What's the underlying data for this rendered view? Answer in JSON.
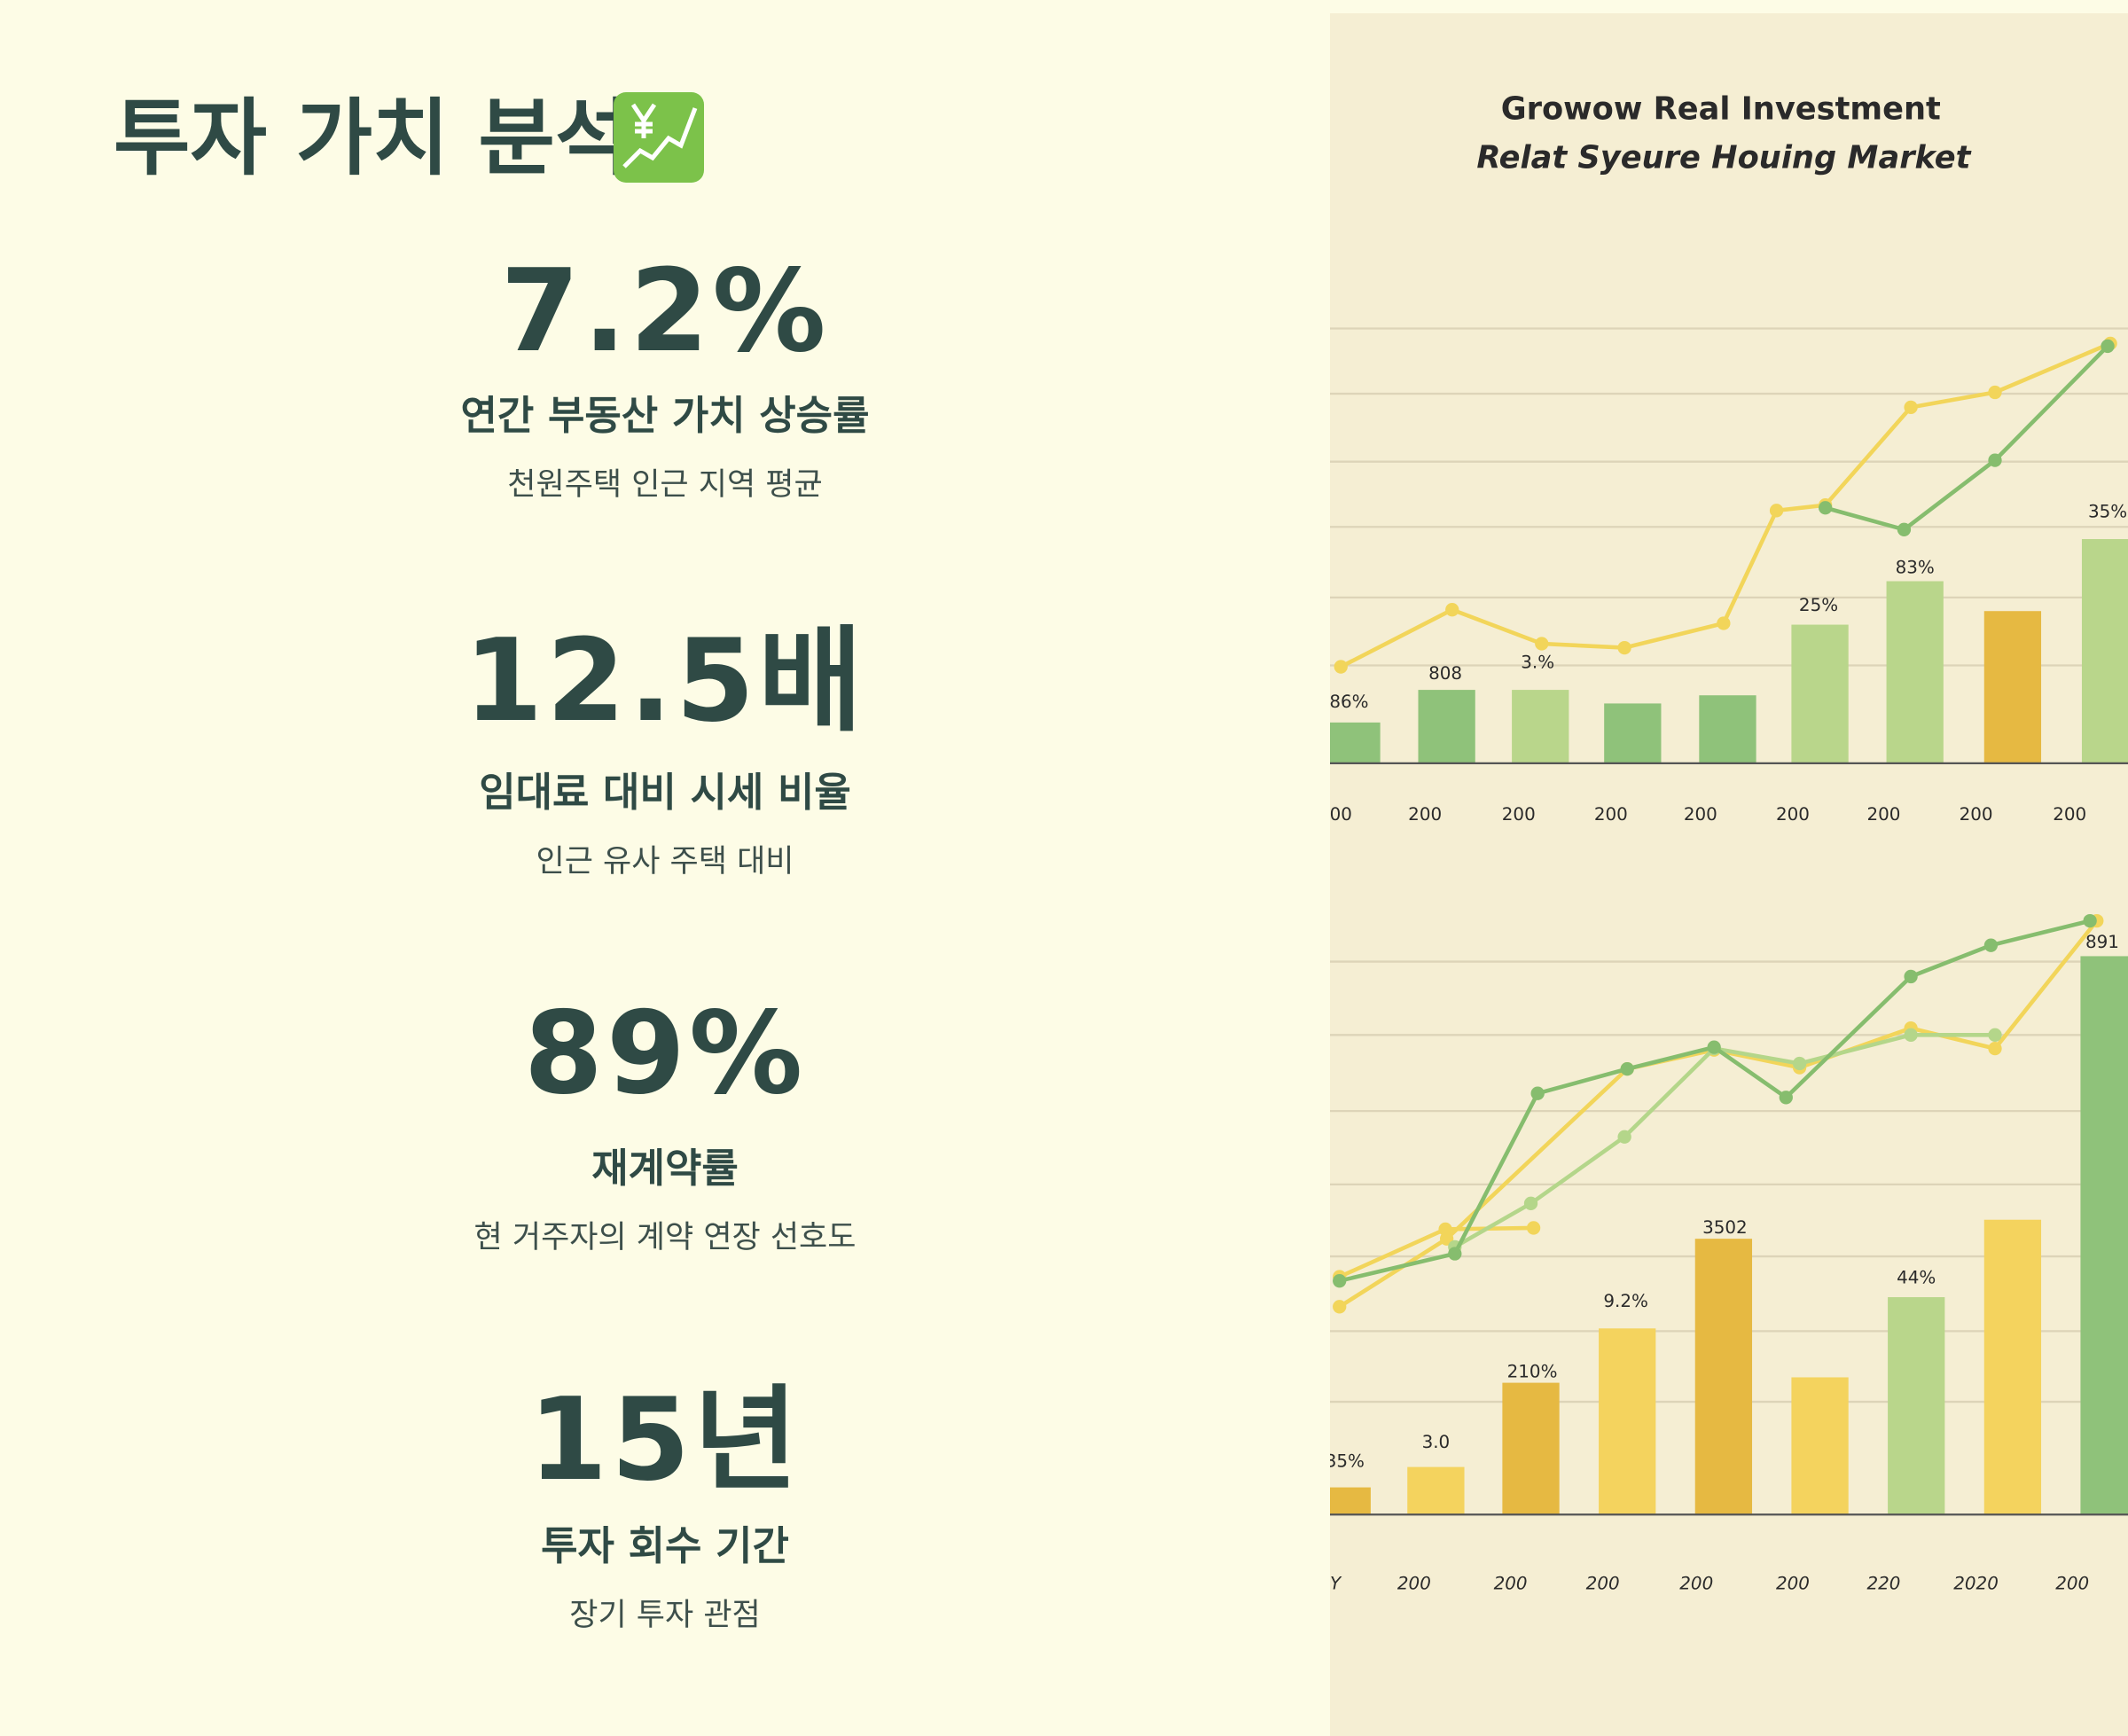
{
  "header": {
    "title": "투자 가치 분석"
  },
  "stats": [
    {
      "value": "7.2%",
      "label": "연간 부동산 가치 상승률",
      "note": "천원주택 인근 지역 평균"
    },
    {
      "value": "12.5배",
      "label": "임대료 대비 시세 비율",
      "note": "인근 유사 주택 대비"
    },
    {
      "value": "89%",
      "label": "재계약률",
      "note": "현 거주자의 계약 연장 선호도"
    },
    {
      "value": "15년",
      "label": "투자 회수 기간",
      "note": "장기 투자 관점"
    }
  ],
  "illustration": {
    "title": "Growow Real Investment",
    "subtitle": "Relat Syeure Houing Market",
    "top_bar_labels": [
      "86%",
      "808",
      "3.%",
      "25%",
      "83%",
      "35%"
    ],
    "top_x_labels": [
      "00",
      "200",
      "200",
      "200",
      "200",
      "200",
      "200",
      "200",
      "200"
    ],
    "bottom_bar_labels": [
      "35%",
      "3.0",
      "210%",
      "9.2%",
      "3502",
      "44%",
      "891"
    ],
    "bottom_x_labels": [
      "Y",
      "200",
      "200",
      "200",
      "200",
      "200",
      "220",
      "2020",
      "200"
    ]
  }
}
